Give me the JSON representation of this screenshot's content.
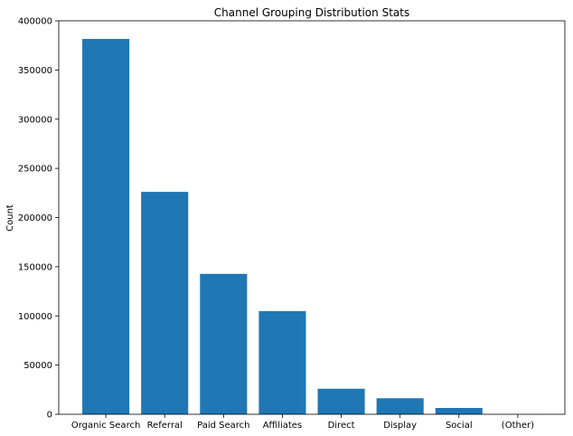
{
  "chart_data": {
    "type": "bar",
    "title": "Channel Grouping Distribution Stats",
    "xlabel": "",
    "ylabel": "Count",
    "categories": [
      "Organic Search",
      "Referral",
      "Paid Search",
      "Affiliates",
      "Direct",
      "Display",
      "Social",
      "(Other)"
    ],
    "values": [
      381561,
      226117,
      142736,
      104838,
      25982,
      16297,
      6425,
      120
    ],
    "ylim": [
      0,
      400000
    ],
    "yticks": [
      0,
      50000,
      100000,
      150000,
      200000,
      250000,
      300000,
      350000,
      400000
    ],
    "ytick_labels": [
      "0",
      "50000",
      "100000",
      "150000",
      "200000",
      "250000",
      "300000",
      "350000",
      "400000"
    ],
    "grid": false,
    "colors": {
      "bar": "#1f77b4",
      "axis": "#000000"
    }
  }
}
